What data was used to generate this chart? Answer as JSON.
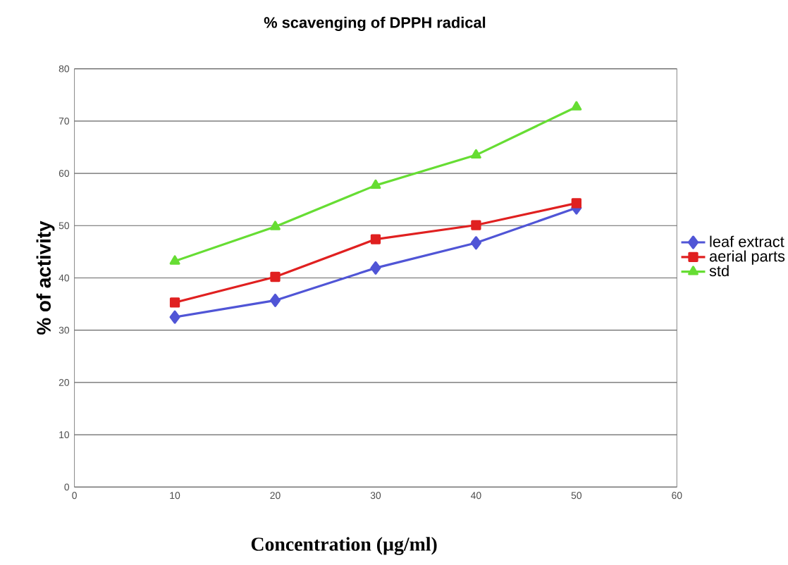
{
  "chart_data": {
    "type": "line",
    "title": "% scavenging of DPPH radical",
    "xlabel": "Concentration (µg/ml)",
    "ylabel": "% of activity",
    "x": [
      10,
      20,
      30,
      40,
      50
    ],
    "series": [
      {
        "name": "leaf extract",
        "color": "#5055d6",
        "marker": "diamond",
        "values": [
          32.5,
          35.7,
          41.9,
          46.7,
          53.4
        ]
      },
      {
        "name": "aerial parts",
        "color": "#e02020",
        "marker": "square",
        "values": [
          35.3,
          40.2,
          47.4,
          50.1,
          54.3
        ]
      },
      {
        "name": "std",
        "color": "#66dd33",
        "marker": "triangle",
        "values": [
          43.2,
          49.8,
          57.7,
          63.5,
          72.7
        ]
      }
    ],
    "xlim": [
      0,
      60
    ],
    "xticks": [
      0,
      10,
      20,
      30,
      40,
      50,
      60
    ],
    "ylim": [
      0,
      80
    ],
    "yticks": [
      0,
      10,
      20,
      30,
      40,
      50,
      60,
      70,
      80
    ],
    "grid": "y",
    "legend": "right",
    "line_style": "solid"
  }
}
